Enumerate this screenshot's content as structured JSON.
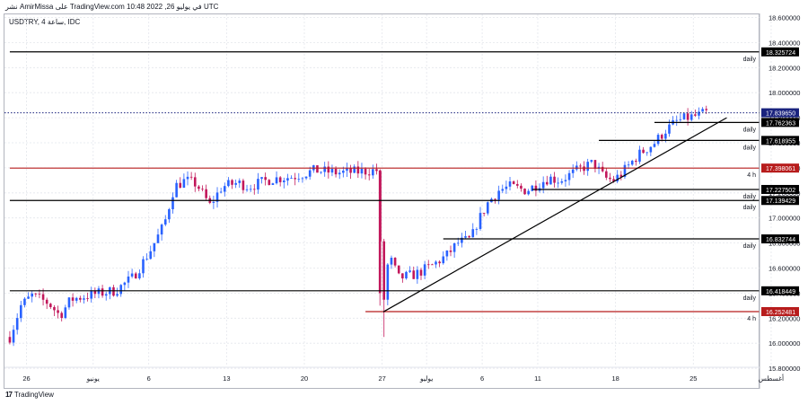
{
  "header": {
    "publish_line": "نشر AmirMissa على TradingView.com في يوليو 26, 2022 10:48 UTC",
    "symbol_line": "USDTRY, 4 ساعة, IDC"
  },
  "branding": {
    "logo_icon": "tradingview-logo-icon",
    "name": "TradingView"
  },
  "chart_data": {
    "type": "candlestick",
    "symbol": "USDTRY",
    "timeframe": "4 ساعة",
    "ylim": [
      15.74,
      18.68
    ],
    "y_ticks": [
      "18.600000",
      "18.400000",
      "18.200000",
      "18.000000",
      "17.800000",
      "17.600000",
      "17.400000",
      "17.200000",
      "17.000000",
      "16.800000",
      "16.600000",
      "16.400000",
      "16.200000",
      "16.000000",
      "15.800000"
    ],
    "x_ticks": [
      {
        "label": "26",
        "day": 0
      },
      {
        "label": "يونيو",
        "day": 6
      },
      {
        "label": "6",
        "day": 11
      },
      {
        "label": "13",
        "day": 18
      },
      {
        "label": "20",
        "day": 25
      },
      {
        "label": "27",
        "day": 32
      },
      {
        "label": "يوليو",
        "day": 36
      },
      {
        "label": "6",
        "day": 41
      },
      {
        "label": "11",
        "day": 46
      },
      {
        "label": "18",
        "day": 53
      },
      {
        "label": "25",
        "day": 60
      },
      {
        "label": "أغسطس",
        "day": 67
      }
    ],
    "current_price": {
      "value": "17.839650",
      "color": "#1a237e"
    },
    "levels": [
      {
        "price": 18.325724,
        "label": "18.325724",
        "tag": "daily",
        "color": "#000000",
        "x_start_day": -1.5
      },
      {
        "price": 17.762363,
        "label": "17.762363",
        "tag": "daily",
        "color": "#000000",
        "x_start_day": 56.5
      },
      {
        "price": 17.618955,
        "label": "17.618955",
        "tag": "daily",
        "color": "#000000",
        "x_start_day": 51.5
      },
      {
        "price": 17.398061,
        "label": "17.398061",
        "tag": "4 h",
        "color": "#b71c1c",
        "x_start_day": -1.5
      },
      {
        "price": 17.227502,
        "label": "17.227502",
        "tag": "daily",
        "color": "#000000",
        "x_start_day": 45.5
      },
      {
        "price": 17.139429,
        "label": "17.139429",
        "tag": "daily",
        "color": "#000000",
        "x_start_day": -1.5
      },
      {
        "price": 16.832744,
        "label": "16.832744",
        "tag": "daily",
        "color": "#000000",
        "x_start_day": 37.5
      },
      {
        "price": 16.418449,
        "label": "16.418449",
        "tag": "daily",
        "color": "#000000",
        "x_start_day": -1.5
      },
      {
        "price": 16.252481,
        "label": "16.252481",
        "tag": "4 h",
        "color": "#b71c1c",
        "x_start_day": 30.5
      }
    ],
    "trendline": {
      "from": {
        "day": 32.1,
        "price": 16.25
      },
      "to": {
        "day": 63.0,
        "price": 17.8
      }
    },
    "up_color": "#2962ff",
    "down_color": "#c2185b",
    "anchors": [
      [
        -1.5,
        16.05
      ],
      [
        -0.5,
        16.3
      ],
      [
        0.5,
        16.38
      ],
      [
        2,
        16.32
      ],
      [
        3,
        16.22
      ],
      [
        4,
        16.35
      ],
      [
        6,
        16.39
      ],
      [
        8,
        16.42
      ],
      [
        9.5,
        16.52
      ],
      [
        10.3,
        16.62
      ],
      [
        11.2,
        16.75
      ],
      [
        12.4,
        16.95
      ],
      [
        13.3,
        17.25
      ],
      [
        14.3,
        17.3
      ],
      [
        15.3,
        17.27
      ],
      [
        16.5,
        17.1
      ],
      [
        17.6,
        17.25
      ],
      [
        19,
        17.28
      ],
      [
        20,
        17.25
      ],
      [
        22,
        17.31
      ],
      [
        24,
        17.33
      ],
      [
        26,
        17.38
      ],
      [
        28,
        17.36
      ],
      [
        30,
        17.37
      ],
      [
        31.5,
        17.38
      ],
      [
        32.1,
        16.3
      ],
      [
        32.6,
        16.7
      ],
      [
        33.5,
        16.52
      ],
      [
        35,
        16.55
      ],
      [
        36.5,
        16.62
      ],
      [
        37.8,
        16.7
      ],
      [
        38.8,
        16.8
      ],
      [
        40,
        16.83
      ],
      [
        40.5,
        16.95
      ],
      [
        41.5,
        17.12
      ],
      [
        42.5,
        17.22
      ],
      [
        43.5,
        17.25
      ],
      [
        45,
        17.22
      ],
      [
        47,
        17.32
      ],
      [
        48,
        17.3
      ],
      [
        49,
        17.35
      ],
      [
        50,
        17.4
      ],
      [
        51,
        17.44
      ],
      [
        52,
        17.32
      ],
      [
        52.8,
        17.3
      ],
      [
        53.5,
        17.35
      ],
      [
        55,
        17.5
      ],
      [
        56.5,
        17.6
      ],
      [
        57.5,
        17.7
      ],
      [
        58.5,
        17.77
      ],
      [
        59.5,
        17.8
      ],
      [
        60.5,
        17.82
      ],
      [
        61.2,
        17.84
      ]
    ]
  }
}
